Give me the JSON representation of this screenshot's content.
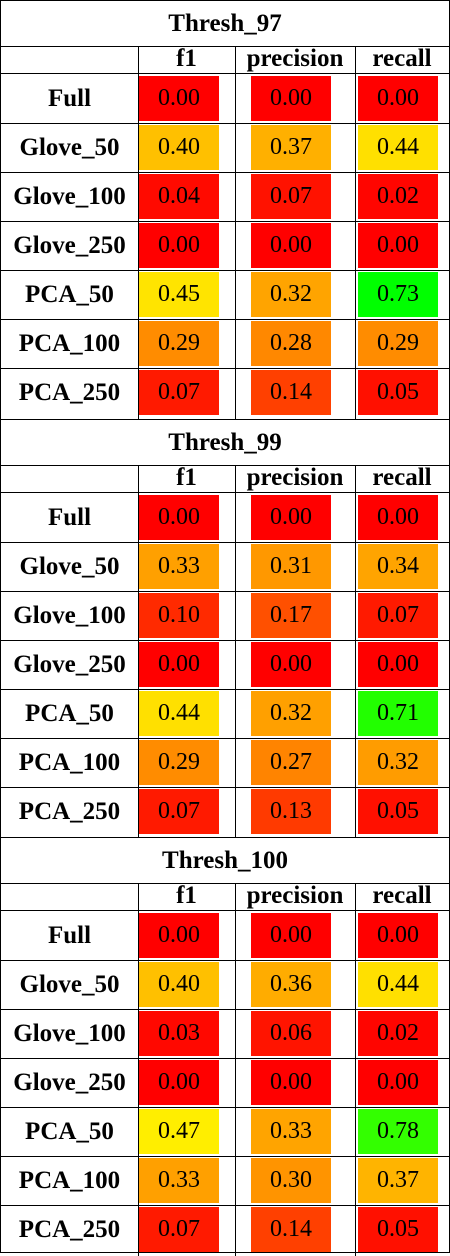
{
  "columns": [
    "f1",
    "precision",
    "recall"
  ],
  "colors": {
    "red": "#ff0000",
    "red_orange": "#ff2a00",
    "deep_orange": "#ff5500",
    "orange": "#ff8000",
    "amber": "#ffaa00",
    "light_amber": "#ffc000",
    "yellow": "#ffe000",
    "bright_yellow": "#ffff00",
    "green": "#00ff00"
  },
  "chart_data": {
    "type": "table",
    "tables": [
      {
        "title": "Thresh_97",
        "columns": [
          "f1",
          "precision",
          "recall"
        ],
        "rows": [
          {
            "label": "Full",
            "values": [
              "0.00",
              "0.00",
              "0.00"
            ],
            "colors": [
              "#ff0000",
              "#ff0000",
              "#ff0000"
            ]
          },
          {
            "label": "Glove_50",
            "values": [
              "0.40",
              "0.37",
              "0.44"
            ],
            "colors": [
              "#ffc000",
              "#ffb000",
              "#ffe000"
            ]
          },
          {
            "label": "Glove_100",
            "values": [
              "0.04",
              "0.07",
              "0.02"
            ],
            "colors": [
              "#ff0a00",
              "#ff1200",
              "#ff0500"
            ]
          },
          {
            "label": "Glove_250",
            "values": [
              "0.00",
              "0.00",
              "0.00"
            ],
            "colors": [
              "#ff0000",
              "#ff0000",
              "#ff0000"
            ]
          },
          {
            "label": "PCA_50",
            "values": [
              "0.45",
              "0.32",
              "0.73"
            ],
            "colors": [
              "#ffe400",
              "#ffa400",
              "#00ff00"
            ]
          },
          {
            "label": "PCA_100",
            "values": [
              "0.29",
              "0.28",
              "0.29"
            ],
            "colors": [
              "#ff8c00",
              "#ff8800",
              "#ff8c00"
            ]
          },
          {
            "label": "PCA_250",
            "values": [
              "0.07",
              "0.14",
              "0.05"
            ],
            "colors": [
              "#ff1a00",
              "#ff4000",
              "#ff1000"
            ]
          }
        ]
      },
      {
        "title": "Thresh_99",
        "columns": [
          "f1",
          "precision",
          "recall"
        ],
        "rows": [
          {
            "label": "Full",
            "values": [
              "0.00",
              "0.00",
              "0.00"
            ],
            "colors": [
              "#ff0000",
              "#ff0000",
              "#ff0000"
            ]
          },
          {
            "label": "Glove_50",
            "values": [
              "0.33",
              "0.31",
              "0.34"
            ],
            "colors": [
              "#ffa000",
              "#ff9800",
              "#ffa400"
            ]
          },
          {
            "label": "Glove_100",
            "values": [
              "0.10",
              "0.17",
              "0.07"
            ],
            "colors": [
              "#ff2a00",
              "#ff5000",
              "#ff1a00"
            ]
          },
          {
            "label": "Glove_250",
            "values": [
              "0.00",
              "0.00",
              "0.00"
            ],
            "colors": [
              "#ff0000",
              "#ff0000",
              "#ff0000"
            ]
          },
          {
            "label": "PCA_50",
            "values": [
              "0.44",
              "0.32",
              "0.71"
            ],
            "colors": [
              "#ffe000",
              "#ffa000",
              "#22ff00"
            ]
          },
          {
            "label": "PCA_100",
            "values": [
              "0.29",
              "0.27",
              "0.32"
            ],
            "colors": [
              "#ff8c00",
              "#ff8400",
              "#ff9c00"
            ]
          },
          {
            "label": "PCA_250",
            "values": [
              "0.07",
              "0.13",
              "0.05"
            ],
            "colors": [
              "#ff1a00",
              "#ff3a00",
              "#ff1000"
            ]
          }
        ]
      },
      {
        "title": "Thresh_100",
        "columns": [
          "f1",
          "precision",
          "recall"
        ],
        "rows": [
          {
            "label": "Full",
            "values": [
              "0.00",
              "0.00",
              "0.00"
            ],
            "colors": [
              "#ff0000",
              "#ff0000",
              "#ff0000"
            ]
          },
          {
            "label": "Glove_50",
            "values": [
              "0.40",
              "0.36",
              "0.44"
            ],
            "colors": [
              "#ffc000",
              "#ffac00",
              "#ffe000"
            ]
          },
          {
            "label": "Glove_100",
            "values": [
              "0.03",
              "0.06",
              "0.02"
            ],
            "colors": [
              "#ff0800",
              "#ff1400",
              "#ff0500"
            ]
          },
          {
            "label": "Glove_250",
            "values": [
              "0.00",
              "0.00",
              "0.00"
            ],
            "colors": [
              "#ff0000",
              "#ff0000",
              "#ff0000"
            ]
          },
          {
            "label": "PCA_50",
            "values": [
              "0.47",
              "0.33",
              "0.78"
            ],
            "colors": [
              "#ffee00",
              "#ffa400",
              "#33ff00"
            ]
          },
          {
            "label": "PCA_100",
            "values": [
              "0.33",
              "0.30",
              "0.37"
            ],
            "colors": [
              "#ffa000",
              "#ff9400",
              "#ffb400"
            ]
          },
          {
            "label": "PCA_250",
            "values": [
              "0.07",
              "0.14",
              "0.05"
            ],
            "colors": [
              "#ff1a00",
              "#ff4000",
              "#ff1000"
            ]
          }
        ]
      }
    ]
  }
}
